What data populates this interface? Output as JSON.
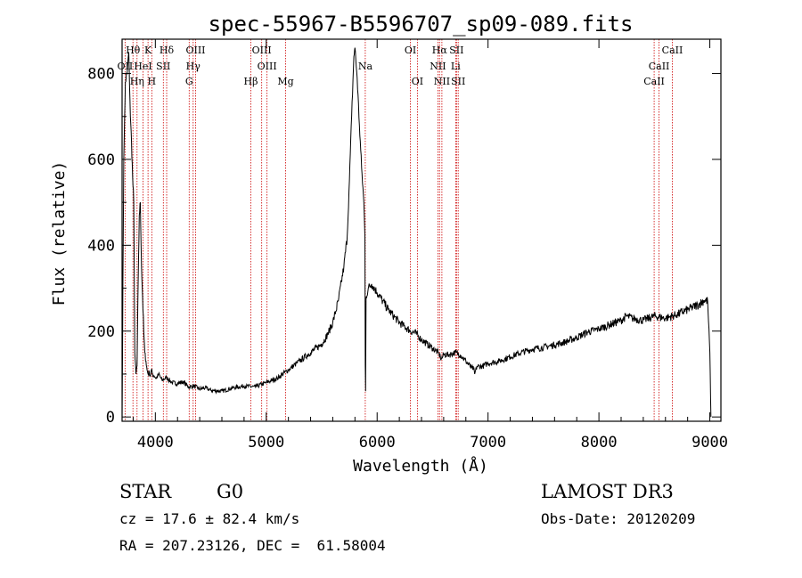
{
  "chart_data": {
    "type": "line",
    "title": "spec-55967-B5596707_sp09-089.fits",
    "xlabel": "Wavelength (Å)",
    "ylabel": "Flux (relative)",
    "xlim": [
      3700,
      9100
    ],
    "ylim": [
      -10,
      880
    ],
    "grid": false,
    "x_ticks": [
      4000,
      5000,
      6000,
      7000,
      8000,
      9000
    ],
    "x_tick_labels": [
      "4000",
      "5000",
      "6000",
      "7000",
      "8000",
      "9000"
    ],
    "y_ticks": [
      0,
      200,
      400,
      600,
      800
    ],
    "y_tick_labels": [
      "0",
      "200",
      "400",
      "600",
      "800"
    ],
    "series": [
      {
        "name": "spectrum",
        "x": [
          3700,
          3715,
          3730,
          3745,
          3760,
          3775,
          3785,
          3795,
          3805,
          3815,
          3825,
          3835,
          3845,
          3855,
          3865,
          3875,
          3885,
          3895,
          3905,
          3915,
          3925,
          3935,
          3945,
          3955,
          3965,
          3975,
          3990,
          4010,
          4030,
          4060,
          4100,
          4150,
          4200,
          4250,
          4300,
          4350,
          4400,
          4450,
          4500,
          4600,
          4700,
          4800,
          4900,
          5000,
          5100,
          5200,
          5300,
          5400,
          5500,
          5550,
          5600,
          5650,
          5700,
          5730,
          5750,
          5770,
          5790,
          5800,
          5820,
          5840,
          5860,
          5880,
          5890,
          5893,
          5896,
          5900,
          5920,
          5950,
          6000,
          6050,
          6100,
          6150,
          6200,
          6250,
          6300,
          6350,
          6400,
          6450,
          6500,
          6550,
          6570,
          6580,
          6600,
          6650,
          6700,
          6750,
          6800,
          6850,
          6870,
          6880,
          6900,
          6950,
          7000,
          7100,
          7200,
          7300,
          7400,
          7500,
          7600,
          7700,
          7800,
          7900,
          8000,
          8100,
          8200,
          8250,
          8300,
          8400,
          8500,
          8600,
          8700,
          8800,
          8900,
          8950,
          8980,
          9000,
          9010
        ],
        "values": [
          0,
          600,
          780,
          800,
          850,
          700,
          640,
          560,
          500,
          150,
          100,
          120,
          310,
          470,
          500,
          350,
          280,
          200,
          150,
          130,
          110,
          100,
          105,
          95,
          110,
          100,
          95,
          90,
          100,
          85,
          92,
          80,
          78,
          82,
          70,
          72,
          65,
          68,
          62,
          60,
          68,
          72,
          70,
          80,
          90,
          110,
          130,
          150,
          170,
          190,
          220,
          270,
          350,
          420,
          550,
          700,
          840,
          860,
          790,
          680,
          580,
          500,
          420,
          120,
          60,
          280,
          300,
          310,
          290,
          270,
          250,
          235,
          220,
          210,
          200,
          195,
          180,
          170,
          160,
          150,
          140,
          135,
          145,
          145,
          150,
          145,
          130,
          115,
          112,
          100,
          118,
          118,
          125,
          130,
          140,
          150,
          158,
          162,
          168,
          175,
          185,
          198,
          205,
          215,
          225,
          235,
          230,
          225,
          235,
          230,
          238,
          250,
          262,
          272,
          270,
          150,
          0
        ]
      }
    ],
    "line_markers": [
      {
        "label": "Hθ",
        "wavelength": 3798,
        "row": 0
      },
      {
        "label": "K",
        "wavelength": 3934,
        "row": 0
      },
      {
        "label": "Hδ",
        "wavelength": 4102,
        "row": 0
      },
      {
        "label": "OIII",
        "wavelength": 4363,
        "row": 0
      },
      {
        "label": "OIII",
        "wavelength": 4959,
        "row": 0
      },
      {
        "label": "OI",
        "wavelength": 6300,
        "row": 0
      },
      {
        "label": "Hα",
        "wavelength": 6563,
        "row": 0
      },
      {
        "label": "SII",
        "wavelength": 6716,
        "row": 0
      },
      {
        "label": "CaII",
        "wavelength": 8662,
        "row": 0
      },
      {
        "label": "OII",
        "wavelength": 3727,
        "row": 1
      },
      {
        "label": "HeI",
        "wavelength": 3889,
        "row": 1
      },
      {
        "label": "SII",
        "wavelength": 4072,
        "row": 1
      },
      {
        "label": "Hγ",
        "wavelength": 4341,
        "row": 1
      },
      {
        "label": "OIII",
        "wavelength": 5007,
        "row": 1
      },
      {
        "label": "Na",
        "wavelength": 5893,
        "row": 1
      },
      {
        "label": "NII",
        "wavelength": 6548,
        "row": 1
      },
      {
        "label": "Li",
        "wavelength": 6708,
        "row": 1
      },
      {
        "label": "CaII",
        "wavelength": 8542,
        "row": 1
      },
      {
        "label": "Hη",
        "wavelength": 3835,
        "row": 2
      },
      {
        "label": "H",
        "wavelength": 3968,
        "row": 2
      },
      {
        "label": "G",
        "wavelength": 4305,
        "row": 2
      },
      {
        "label": "Hβ",
        "wavelength": 4861,
        "row": 2
      },
      {
        "label": "Mg",
        "wavelength": 5175,
        "row": 2
      },
      {
        "label": "OI",
        "wavelength": 6363,
        "row": 2
      },
      {
        "label": "NII",
        "wavelength": 6584,
        "row": 2
      },
      {
        "label": "SII",
        "wavelength": 6731,
        "row": 2
      },
      {
        "label": "CaII",
        "wavelength": 8498,
        "row": 2
      }
    ]
  },
  "info": {
    "class_label": "STAR",
    "subclass": "G0",
    "survey": "LAMOST DR3",
    "redshift_line": "cz = 17.6 ± 82.4 km/s",
    "obs_date": "Obs-Date: 20120209",
    "coords": "RA = 207.23126, DEC =  61.58004"
  },
  "colors": {
    "axes": "#000000",
    "spectrum": "#000000",
    "marker_line": "#cc0000"
  }
}
